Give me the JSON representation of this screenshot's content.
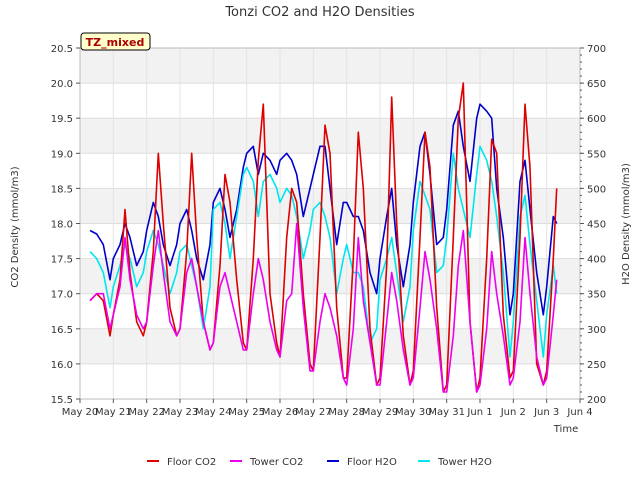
{
  "chart_data": {
    "type": "line",
    "title": "Tonzi CO2 and H2O Densities",
    "badge": "TZ_mixed",
    "xlabel": "Time",
    "ylabel_left": "CO2 Density (mmol/m3)",
    "ylabel_right": "H2O Density (mmol/m3)",
    "ylim_left": [
      15.5,
      20.5
    ],
    "ylim_right": [
      200,
      700
    ],
    "xlim_days": [
      0,
      15
    ],
    "yticks_left": [
      "15.5",
      "16.0",
      "16.5",
      "17.0",
      "17.5",
      "18.0",
      "18.5",
      "19.0",
      "19.5",
      "20.0",
      "20.5"
    ],
    "yticks_right": [
      "200",
      "250",
      "300",
      "350",
      "400",
      "450",
      "500",
      "550",
      "600",
      "650",
      "700"
    ],
    "xticks": [
      "May 20",
      "May 21",
      "May 22",
      "May 23",
      "May 24",
      "May 25",
      "May 26",
      "May 27",
      "May 28",
      "May 29",
      "May 30",
      "May 31",
      "Jun 1",
      "Jun 2",
      "Jun 3",
      "Jun 4"
    ],
    "grid": true,
    "legend_position": "bottom-center",
    "series": [
      {
        "name": "Floor CO2",
        "axis": "left",
        "color": "#dd0000",
        "x": [
          0.3,
          0.5,
          0.7,
          0.9,
          1.0,
          1.2,
          1.35,
          1.5,
          1.7,
          1.9,
          2.0,
          2.2,
          2.35,
          2.5,
          2.7,
          2.9,
          3.0,
          3.2,
          3.35,
          3.5,
          3.7,
          3.9,
          4.0,
          4.2,
          4.35,
          4.5,
          4.7,
          4.9,
          5.0,
          5.2,
          5.35,
          5.5,
          5.7,
          5.9,
          6.0,
          6.2,
          6.35,
          6.5,
          6.7,
          6.9,
          7.0,
          7.2,
          7.35,
          7.5,
          7.7,
          7.9,
          8.0,
          8.2,
          8.35,
          8.5,
          8.7,
          8.9,
          9.0,
          9.2,
          9.35,
          9.5,
          9.7,
          9.9,
          10.0,
          10.2,
          10.35,
          10.5,
          10.7,
          10.9,
          11.0,
          11.2,
          11.35,
          11.5,
          11.7,
          11.9,
          12.0,
          12.2,
          12.35,
          12.5,
          12.7,
          12.9,
          13.0,
          13.2,
          13.35,
          13.5,
          13.7,
          13.9,
          14.0,
          14.2,
          14.3
        ],
        "values": [
          16.9,
          17.0,
          16.9,
          16.4,
          16.7,
          17.2,
          18.2,
          17.3,
          16.6,
          16.4,
          16.6,
          17.6,
          19.0,
          18.0,
          16.8,
          16.4,
          16.5,
          17.6,
          19.0,
          17.8,
          16.6,
          16.2,
          16.3,
          17.4,
          18.7,
          18.3,
          17.2,
          16.3,
          16.2,
          17.5,
          18.9,
          19.7,
          17.0,
          16.3,
          16.1,
          17.8,
          18.5,
          18.3,
          17.0,
          16.0,
          15.9,
          17.8,
          19.4,
          19.0,
          16.8,
          15.8,
          15.8,
          17.5,
          19.3,
          18.5,
          16.5,
          15.7,
          15.8,
          17.4,
          19.8,
          18.0,
          16.4,
          15.7,
          15.9,
          17.8,
          19.3,
          18.8,
          16.8,
          15.6,
          15.7,
          17.8,
          19.5,
          20.0,
          16.6,
          15.6,
          15.8,
          17.5,
          19.2,
          19.0,
          16.7,
          15.8,
          15.9,
          17.8,
          19.7,
          18.8,
          16.0,
          15.7,
          15.9,
          17.5,
          18.5
        ]
      },
      {
        "name": "Tower CO2",
        "axis": "left",
        "color": "#ee00ee",
        "x": [
          0.3,
          0.5,
          0.7,
          0.9,
          1.0,
          1.2,
          1.35,
          1.5,
          1.7,
          1.9,
          2.0,
          2.2,
          2.35,
          2.5,
          2.7,
          2.9,
          3.0,
          3.2,
          3.35,
          3.5,
          3.7,
          3.9,
          4.0,
          4.2,
          4.35,
          4.5,
          4.7,
          4.9,
          5.0,
          5.2,
          5.35,
          5.5,
          5.7,
          5.9,
          6.0,
          6.2,
          6.35,
          6.5,
          6.7,
          6.9,
          7.0,
          7.2,
          7.35,
          7.5,
          7.7,
          7.9,
          8.0,
          8.2,
          8.35,
          8.5,
          8.7,
          8.9,
          9.0,
          9.2,
          9.35,
          9.5,
          9.7,
          9.9,
          10.0,
          10.2,
          10.35,
          10.5,
          10.7,
          10.9,
          11.0,
          11.2,
          11.35,
          11.5,
          11.7,
          11.9,
          12.0,
          12.2,
          12.35,
          12.5,
          12.7,
          12.9,
          13.0,
          13.2,
          13.35,
          13.5,
          13.7,
          13.9,
          14.0,
          14.2,
          14.3
        ],
        "values": [
          16.9,
          17.0,
          17.0,
          16.5,
          16.7,
          17.1,
          17.8,
          17.2,
          16.7,
          16.5,
          16.6,
          17.4,
          17.9,
          17.3,
          16.6,
          16.4,
          16.5,
          17.3,
          17.5,
          17.1,
          16.6,
          16.2,
          16.3,
          17.1,
          17.3,
          17.0,
          16.6,
          16.2,
          16.2,
          17.0,
          17.5,
          17.2,
          16.6,
          16.2,
          16.1,
          16.9,
          17.0,
          18.0,
          16.8,
          15.9,
          15.9,
          16.6,
          17.0,
          16.8,
          16.4,
          15.8,
          15.7,
          16.5,
          17.8,
          16.9,
          16.3,
          15.7,
          15.7,
          16.6,
          17.3,
          16.9,
          16.2,
          15.7,
          15.8,
          16.8,
          17.6,
          17.2,
          16.5,
          15.6,
          15.6,
          16.4,
          17.4,
          17.9,
          16.6,
          15.6,
          15.7,
          16.5,
          17.6,
          17.0,
          16.4,
          15.7,
          15.8,
          16.6,
          17.8,
          17.0,
          16.1,
          15.7,
          15.8,
          16.7,
          17.2
        ]
      },
      {
        "name": "Floor H2O",
        "axis": "right",
        "color": "#0000cc",
        "x": [
          0.3,
          0.5,
          0.7,
          0.9,
          1.0,
          1.2,
          1.35,
          1.5,
          1.7,
          1.9,
          2.0,
          2.2,
          2.35,
          2.5,
          2.7,
          2.9,
          3.0,
          3.2,
          3.35,
          3.5,
          3.7,
          3.9,
          4.0,
          4.2,
          4.35,
          4.5,
          4.7,
          4.9,
          5.0,
          5.2,
          5.35,
          5.5,
          5.7,
          5.9,
          6.0,
          6.2,
          6.35,
          6.5,
          6.7,
          6.9,
          7.0,
          7.2,
          7.35,
          7.5,
          7.7,
          7.9,
          8.0,
          8.2,
          8.35,
          8.5,
          8.7,
          8.9,
          9.0,
          9.2,
          9.35,
          9.5,
          9.7,
          9.9,
          10.0,
          10.2,
          10.35,
          10.5,
          10.7,
          10.9,
          11.0,
          11.2,
          11.35,
          11.5,
          11.7,
          11.9,
          12.0,
          12.2,
          12.35,
          12.5,
          12.7,
          12.9,
          13.0,
          13.2,
          13.35,
          13.5,
          13.7,
          13.9,
          14.0,
          14.2,
          14.3
        ],
        "values": [
          440,
          435,
          420,
          370,
          400,
          420,
          450,
          430,
          390,
          410,
          440,
          480,
          460,
          420,
          390,
          420,
          450,
          470,
          440,
          400,
          370,
          420,
          480,
          500,
          470,
          430,
          470,
          530,
          550,
          560,
          520,
          550,
          540,
          520,
          540,
          550,
          540,
          520,
          460,
          500,
          520,
          560,
          560,
          500,
          420,
          480,
          480,
          460,
          460,
          440,
          380,
          350,
          400,
          460,
          500,
          420,
          360,
          420,
          480,
          560,
          580,
          520,
          420,
          430,
          470,
          590,
          610,
          560,
          510,
          600,
          620,
          610,
          600,
          500,
          430,
          320,
          350,
          510,
          540,
          470,
          380,
          320,
          360,
          460,
          450
        ]
      },
      {
        "name": "Tower H2O",
        "axis": "right",
        "color": "#00e6ee",
        "x": [
          0.3,
          0.5,
          0.7,
          0.9,
          1.0,
          1.2,
          1.35,
          1.5,
          1.7,
          1.9,
          2.0,
          2.2,
          2.35,
          2.5,
          2.7,
          2.9,
          3.0,
          3.2,
          3.35,
          3.5,
          3.7,
          3.9,
          4.0,
          4.2,
          4.35,
          4.5,
          4.7,
          4.9,
          5.0,
          5.2,
          5.35,
          5.5,
          5.7,
          5.9,
          6.0,
          6.2,
          6.35,
          6.5,
          6.7,
          6.9,
          7.0,
          7.2,
          7.35,
          7.5,
          7.7,
          7.9,
          8.0,
          8.2,
          8.35,
          8.5,
          8.7,
          8.9,
          9.0,
          9.2,
          9.35,
          9.5,
          9.7,
          9.9,
          10.0,
          10.2,
          10.35,
          10.5,
          10.7,
          10.9,
          11.0,
          11.2,
          11.35,
          11.5,
          11.7,
          11.9,
          12.0,
          12.2,
          12.35,
          12.5,
          12.7,
          12.9,
          13.0,
          13.2,
          13.35,
          13.5,
          13.7,
          13.9,
          14.0,
          14.2,
          14.3
        ],
        "values": [
          410,
          400,
          380,
          330,
          360,
          390,
          420,
          400,
          360,
          380,
          410,
          440,
          420,
          390,
          350,
          380,
          410,
          420,
          390,
          360,
          300,
          360,
          470,
          480,
          450,
          400,
          460,
          520,
          530,
          510,
          460,
          510,
          520,
          500,
          480,
          500,
          490,
          460,
          400,
          440,
          470,
          480,
          460,
          430,
          350,
          400,
          420,
          380,
          380,
          360,
          280,
          300,
          370,
          400,
          430,
          380,
          310,
          360,
          440,
          510,
          490,
          470,
          380,
          390,
          430,
          550,
          500,
          470,
          430,
          520,
          560,
          540,
          510,
          460,
          380,
          260,
          310,
          460,
          490,
          420,
          340,
          260,
          320,
          390,
          350
        ]
      }
    ]
  }
}
